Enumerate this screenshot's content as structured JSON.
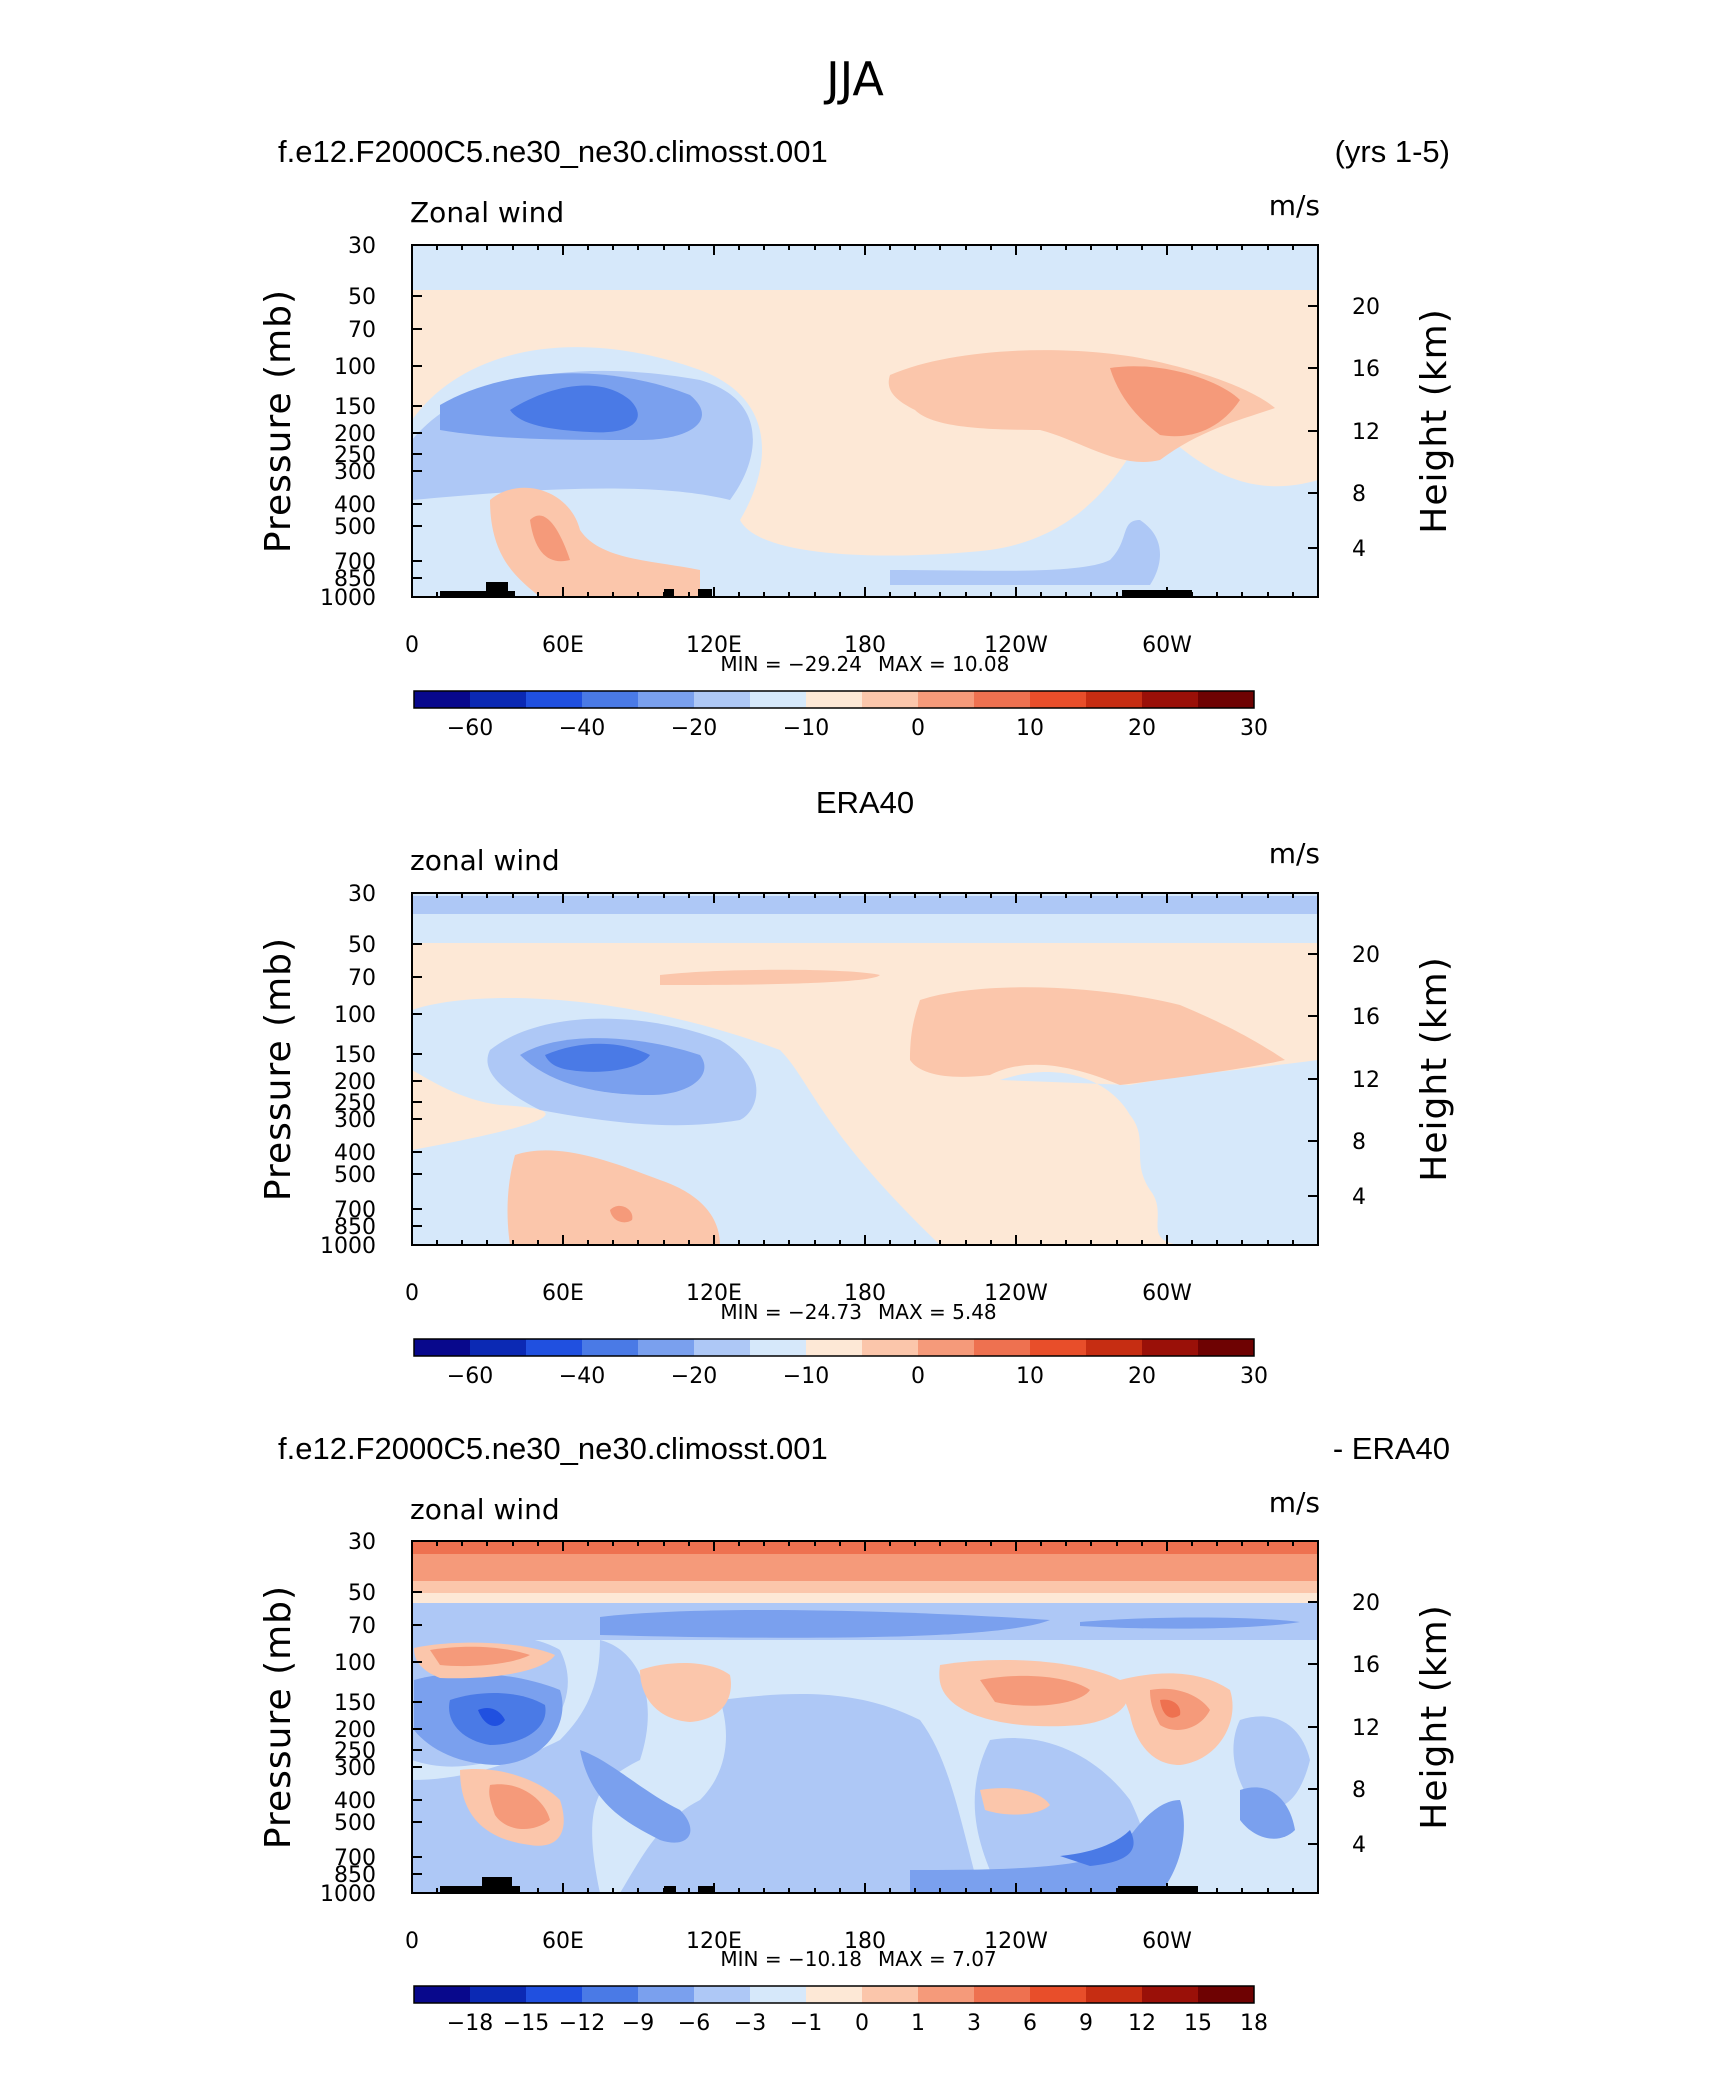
{
  "figure": {
    "title": "JJA"
  },
  "chart_data": [
    {
      "type": "heatmap",
      "header_left": "f.e12.F2000C5.ne30_ne30.climosst.001",
      "header_right": "(yrs 1-5)",
      "variable": "Zonal wind",
      "units": "m/s",
      "ylabel": "Pressure (mb)",
      "ylabel_right": "Height (km)",
      "xticks": [
        "0",
        "60E",
        "120E",
        "180",
        "120W",
        "60W"
      ],
      "yticks": [
        "30",
        "50",
        "70",
        "100",
        "150",
        "200",
        "250",
        "300",
        "400",
        "500",
        "700",
        "850",
        "1000"
      ],
      "yticks_right": [
        "20",
        "16",
        "12",
        "8",
        "4"
      ],
      "min_label": "MIN = −29.24",
      "max_label": "MAX = 10.08",
      "min": -29.24,
      "max": 10.08,
      "colorbar": {
        "labels": [
          "−60",
          "−40",
          "−20",
          "−10",
          "0",
          "10",
          "20",
          "30"
        ],
        "colors": [
          "#08088c",
          "#0b29b4",
          "#2050e0",
          "#4a7ae6",
          "#7aa0ee",
          "#aec8f6",
          "#d6e8fa",
          "#fde8d6",
          "#fbc6ab",
          "#f59a7a",
          "#ee7150",
          "#e84e2a",
          "#c62d12",
          "#9a1008",
          "#6e0202"
        ]
      }
    },
    {
      "type": "heatmap",
      "header_center": "ERA40",
      "variable": "zonal wind",
      "units": "m/s",
      "ylabel": "Pressure (mb)",
      "ylabel_right": "Height (km)",
      "xticks": [
        "0",
        "60E",
        "120E",
        "180",
        "120W",
        "60W"
      ],
      "yticks": [
        "30",
        "50",
        "70",
        "100",
        "150",
        "200",
        "250",
        "300",
        "400",
        "500",
        "700",
        "850",
        "1000"
      ],
      "yticks_right": [
        "20",
        "16",
        "12",
        "8",
        "4"
      ],
      "min_label": "MIN = −24.73",
      "max_label": "MAX = 5.48",
      "min": -24.73,
      "max": 5.48,
      "colorbar": {
        "labels": [
          "−60",
          "−40",
          "−20",
          "−10",
          "0",
          "10",
          "20",
          "30"
        ],
        "colors": [
          "#08088c",
          "#0b29b4",
          "#2050e0",
          "#4a7ae6",
          "#7aa0ee",
          "#aec8f6",
          "#d6e8fa",
          "#fde8d6",
          "#fbc6ab",
          "#f59a7a",
          "#ee7150",
          "#e84e2a",
          "#c62d12",
          "#9a1008",
          "#6e0202"
        ]
      }
    },
    {
      "type": "heatmap",
      "header_left": "f.e12.F2000C5.ne30_ne30.climosst.001",
      "header_right": "- ERA40",
      "variable": "zonal wind",
      "units": "m/s",
      "ylabel": "Pressure (mb)",
      "ylabel_right": "Height (km)",
      "xticks": [
        "0",
        "60E",
        "120E",
        "180",
        "120W",
        "60W"
      ],
      "yticks": [
        "30",
        "50",
        "70",
        "100",
        "150",
        "200",
        "250",
        "300",
        "400",
        "500",
        "700",
        "850",
        "1000"
      ],
      "yticks_right": [
        "20",
        "16",
        "12",
        "8",
        "4"
      ],
      "min_label": "MIN = −10.18",
      "max_label": "MAX = 7.07",
      "min": -10.18,
      "max": 7.07,
      "colorbar": {
        "labels": [
          "−18",
          "−15",
          "−12",
          "−9",
          "−6",
          "−3",
          "−1",
          "0",
          "1",
          "3",
          "6",
          "9",
          "12",
          "15",
          "18"
        ],
        "colors": [
          "#08088c",
          "#0b29b4",
          "#2050e0",
          "#4a7ae6",
          "#7aa0ee",
          "#aec8f6",
          "#d6e8fa",
          "#fde8d6",
          "#fbc6ab",
          "#f59a7a",
          "#ee7150",
          "#e84e2a",
          "#c62d12",
          "#9a1008",
          "#6e0202"
        ]
      }
    }
  ]
}
